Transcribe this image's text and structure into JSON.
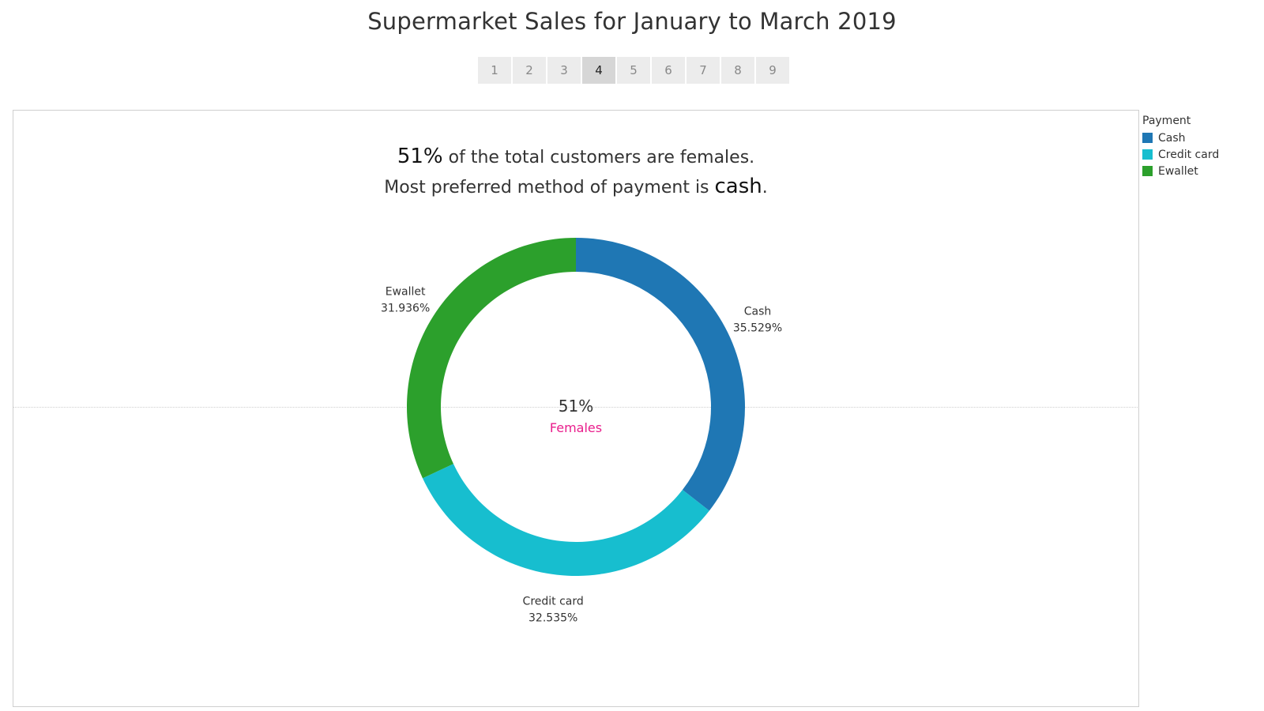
{
  "header": {
    "title": "Supermarket Sales for January to March 2019"
  },
  "pager": {
    "pages": [
      "1",
      "2",
      "3",
      "4",
      "5",
      "6",
      "7",
      "8",
      "9"
    ],
    "active_index": 3
  },
  "headline": {
    "line1_big": "51%",
    "line1_rest": " of the total customers are females.",
    "line2_rest": "Most preferred method of payment is ",
    "line2_big": "cash",
    "line2_end": "."
  },
  "legend": {
    "title": "Payment",
    "items": [
      {
        "label": "Cash",
        "color": "#1f77b4"
      },
      {
        "label": "Credit card",
        "color": "#17becf"
      },
      {
        "label": "Ewallet",
        "color": "#2ca02c"
      }
    ]
  },
  "chart_data": {
    "type": "pie",
    "variant": "donut",
    "center_value": "51%",
    "center_label": "Females",
    "center_label_color": "#e91e8c",
    "slices": [
      {
        "label": "Cash",
        "value": 35.529,
        "value_label": "35.529%",
        "color": "#1f77b4"
      },
      {
        "label": "Credit card",
        "value": 32.535,
        "value_label": "32.535%",
        "color": "#17becf"
      },
      {
        "label": "Ewallet",
        "value": 31.936,
        "value_label": "31.936%",
        "color": "#2ca02c"
      }
    ]
  }
}
